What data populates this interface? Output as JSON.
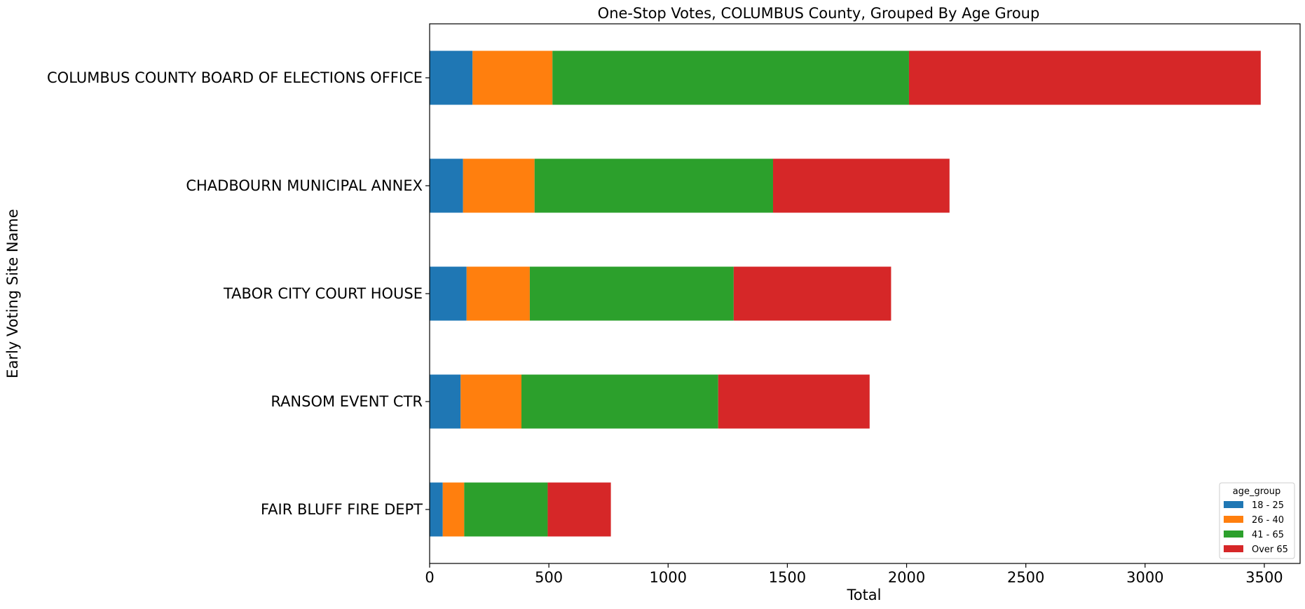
{
  "chart_data": {
    "type": "bar",
    "orientation": "horizontal",
    "stacked": true,
    "title": "One-Stop Votes, COLUMBUS County, Grouped By Age Group",
    "xlabel": "Total",
    "ylabel": "Early Voting Site Name",
    "xlim": [
      0,
      3650
    ],
    "xticks": [
      0,
      500,
      1000,
      1500,
      2000,
      2500,
      3000,
      3500
    ],
    "grid": false,
    "categories": [
      "COLUMBUS COUNTY BOARD OF ELECTIONS OFFICE",
      "CHADBOURN MUNICIPAL ANNEX",
      "TABOR CITY COURT HOUSE",
      "RANSOM EVENT CTR",
      "FAIR BLUFF FIRE DEPT"
    ],
    "legend": {
      "title": "age_group",
      "placement": "lower-right"
    },
    "series": [
      {
        "name": "18 - 25",
        "color": "#1f77b4",
        "values": [
          180,
          140,
          155,
          130,
          55
        ]
      },
      {
        "name": "26 - 40",
        "color": "#ff7f0e",
        "values": [
          335,
          300,
          265,
          255,
          90
        ]
      },
      {
        "name": "41 - 65",
        "color": "#2ca02c",
        "values": [
          1495,
          1000,
          855,
          825,
          350
        ]
      },
      {
        "name": "Over 65",
        "color": "#d62728",
        "values": [
          1475,
          740,
          660,
          635,
          265
        ]
      }
    ]
  }
}
